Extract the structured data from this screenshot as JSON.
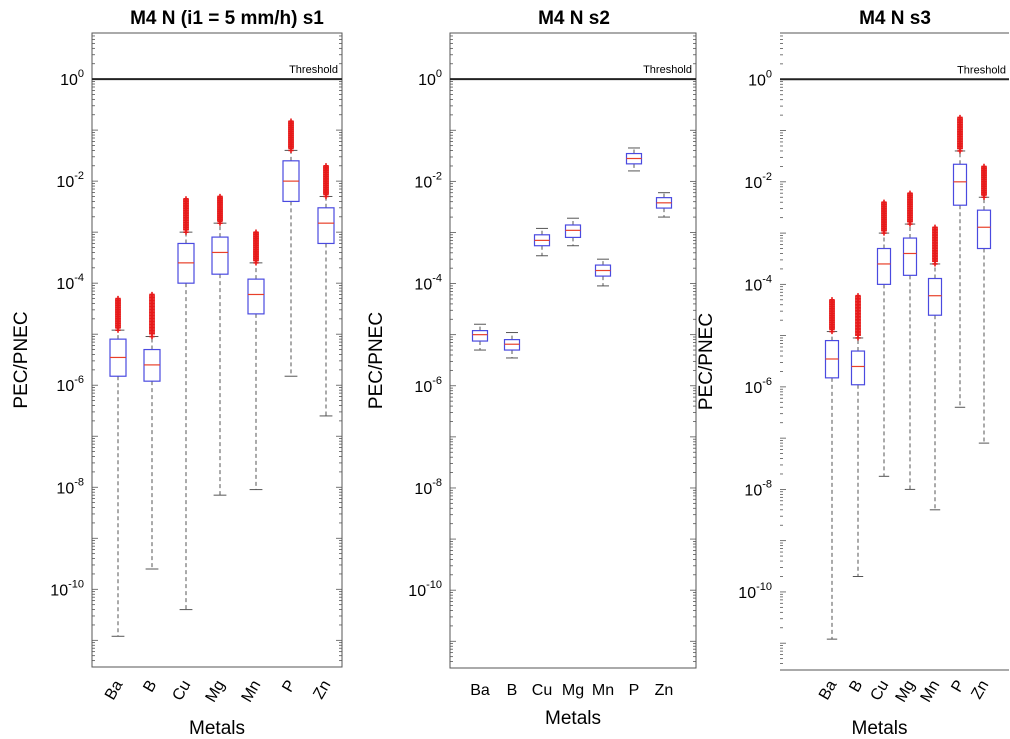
{
  "chart_data": [
    {
      "type": "box",
      "title": "M4 N (i1 = 5 mm/h) s1",
      "ylabel": "PEC/PNEC",
      "xlabel": "Metals",
      "yscale": "log",
      "ylim": [
        3e-12,
        8
      ],
      "yticks": [
        {
          "base": "10",
          "exp": "0"
        },
        {
          "base": "10",
          "exp": "-2"
        },
        {
          "base": "10",
          "exp": "-4"
        },
        {
          "base": "10",
          "exp": "-6"
        },
        {
          "base": "10",
          "exp": "-8"
        },
        {
          "base": "10",
          "exp": "-10"
        }
      ],
      "threshold": {
        "value": 1,
        "label": "Threshold"
      },
      "category_rotation": -60,
      "categories": [
        "Ba",
        "B",
        "Cu",
        "Mg",
        "Mn",
        "P",
        "Zn"
      ],
      "boxes": [
        {
          "whisker_low": 1.2e-11,
          "q1": 1.5e-06,
          "median": 3.5e-06,
          "q3": 8e-06,
          "whisker_high": 1.2e-05,
          "outlier_high": 5e-05
        },
        {
          "whisker_low": 2.5e-10,
          "q1": 1.2e-06,
          "median": 2.5e-06,
          "q3": 5e-06,
          "whisker_high": 9e-06,
          "outlier_high": 6e-05
        },
        {
          "whisker_low": 4e-11,
          "q1": 0.0001,
          "median": 0.00025,
          "q3": 0.0006,
          "whisker_high": 0.001,
          "outlier_high": 0.0045
        },
        {
          "whisker_low": 7e-09,
          "q1": 0.00015,
          "median": 0.0004,
          "q3": 0.0008,
          "whisker_high": 0.0015,
          "outlier_high": 0.005
        },
        {
          "whisker_low": 9e-09,
          "q1": 2.5e-05,
          "median": 6e-05,
          "q3": 0.00012,
          "whisker_high": 0.00025,
          "outlier_high": 0.001
        },
        {
          "whisker_low": 1.5e-06,
          "q1": 0.004,
          "median": 0.01,
          "q3": 0.025,
          "whisker_high": 0.04,
          "outlier_high": 0.15
        },
        {
          "whisker_low": 2.5e-07,
          "q1": 0.0006,
          "median": 0.0015,
          "q3": 0.003,
          "whisker_high": 0.005,
          "outlier_high": 0.02
        }
      ]
    },
    {
      "type": "box",
      "title": "M4 N s2",
      "ylabel": "PEC/PNEC",
      "xlabel": "Metals",
      "yscale": "log",
      "ylim": [
        3e-12,
        8
      ],
      "yticks": [
        {
          "base": "10",
          "exp": "0"
        },
        {
          "base": "10",
          "exp": "-2"
        },
        {
          "base": "10",
          "exp": "-4"
        },
        {
          "base": "10",
          "exp": "-6"
        },
        {
          "base": "10",
          "exp": "-8"
        },
        {
          "base": "10",
          "exp": "-10"
        }
      ],
      "threshold": {
        "value": 1,
        "label": "Threshold"
      },
      "category_rotation": 0,
      "categories": [
        "Ba",
        "B",
        "Cu",
        "Mg",
        "Mn",
        "P",
        "Zn"
      ],
      "boxes": [
        {
          "whisker_low": 5e-06,
          "q1": 7.5e-06,
          "median": 1e-05,
          "q3": 1.2e-05,
          "whisker_high": 1.6e-05
        },
        {
          "whisker_low": 3.5e-06,
          "q1": 5e-06,
          "median": 6.5e-06,
          "q3": 8e-06,
          "whisker_high": 1.1e-05
        },
        {
          "whisker_low": 0.00035,
          "q1": 0.00055,
          "median": 0.0007,
          "q3": 0.0009,
          "whisker_high": 0.0012
        },
        {
          "whisker_low": 0.00055,
          "q1": 0.0008,
          "median": 0.0011,
          "q3": 0.0014,
          "whisker_high": 0.0019
        },
        {
          "whisker_low": 9e-05,
          "q1": 0.00014,
          "median": 0.00018,
          "q3": 0.00023,
          "whisker_high": 0.0003
        },
        {
          "whisker_low": 0.016,
          "q1": 0.022,
          "median": 0.028,
          "q3": 0.035,
          "whisker_high": 0.045
        },
        {
          "whisker_low": 0.002,
          "q1": 0.003,
          "median": 0.0038,
          "q3": 0.0048,
          "whisker_high": 0.006
        }
      ]
    },
    {
      "type": "box",
      "title": "M4 N s3",
      "ylabel": "PEC/PNEC",
      "xlabel": "Metals",
      "yscale": "log",
      "ylim": [
        3e-12,
        8
      ],
      "yticks": [
        {
          "base": "10",
          "exp": "0"
        },
        {
          "base": "10",
          "exp": "-2"
        },
        {
          "base": "10",
          "exp": "-4"
        },
        {
          "base": "10",
          "exp": "-6"
        },
        {
          "base": "10",
          "exp": "-8"
        },
        {
          "base": "10",
          "exp": "-10"
        }
      ],
      "threshold": {
        "value": 1,
        "label": "Threshold"
      },
      "category_rotation": -60,
      "categories": [
        "Ba",
        "B",
        "Cu",
        "Mg",
        "Mn",
        "P",
        "Zn"
      ],
      "boxes": [
        {
          "whisker_low": 1.2e-11,
          "q1": 1.5e-06,
          "median": 3.5e-06,
          "q3": 8e-06,
          "whisker_high": 1.2e-05,
          "outlier_high": 5e-05
        },
        {
          "whisker_low": 2e-10,
          "q1": 1.1e-06,
          "median": 2.5e-06,
          "q3": 5e-06,
          "whisker_high": 9e-06,
          "outlier_high": 6e-05
        },
        {
          "whisker_low": 1.8e-08,
          "q1": 0.0001,
          "median": 0.00025,
          "q3": 0.0005,
          "whisker_high": 0.001,
          "outlier_high": 0.004
        },
        {
          "whisker_low": 1e-08,
          "q1": 0.00015,
          "median": 0.0004,
          "q3": 0.0008,
          "whisker_high": 0.0015,
          "outlier_high": 0.006
        },
        {
          "whisker_low": 4e-09,
          "q1": 2.5e-05,
          "median": 6e-05,
          "q3": 0.00013,
          "whisker_high": 0.00025,
          "outlier_high": 0.0013
        },
        {
          "whisker_low": 4e-07,
          "q1": 0.0035,
          "median": 0.01,
          "q3": 0.022,
          "whisker_high": 0.04,
          "outlier_high": 0.18
        },
        {
          "whisker_low": 8e-08,
          "q1": 0.0005,
          "median": 0.0013,
          "q3": 0.0028,
          "whisker_high": 0.005,
          "outlier_high": 0.02
        }
      ]
    }
  ],
  "colors": {
    "box": "#4a4ae0",
    "median": "#e8402a",
    "outlier": "#e61a1a",
    "whisker": "#555555",
    "threshold": "#222222",
    "axis": "#555555"
  }
}
